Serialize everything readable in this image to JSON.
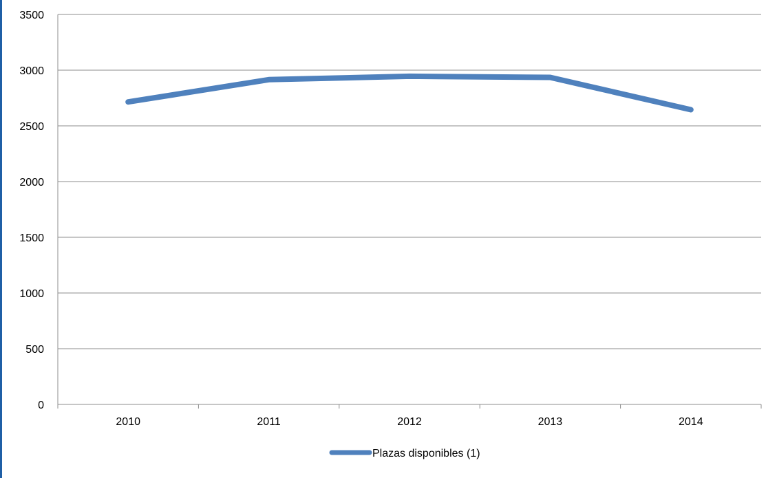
{
  "chart_data": {
    "type": "line",
    "categories": [
      "2010",
      "2011",
      "2012",
      "2013",
      "2014"
    ],
    "series": [
      {
        "name": "Plazas disponibles (1)",
        "values": [
          2715,
          2915,
          2945,
          2935,
          2645
        ],
        "color": "#4f81bd"
      }
    ],
    "y_ticks": [
      "0",
      "500",
      "1000",
      "1500",
      "2000",
      "2500",
      "3000",
      "3500"
    ],
    "ylim": [
      0,
      3500
    ],
    "grid": true,
    "legend_position": "bottom",
    "title": "",
    "xlabel": "",
    "ylabel": ""
  }
}
